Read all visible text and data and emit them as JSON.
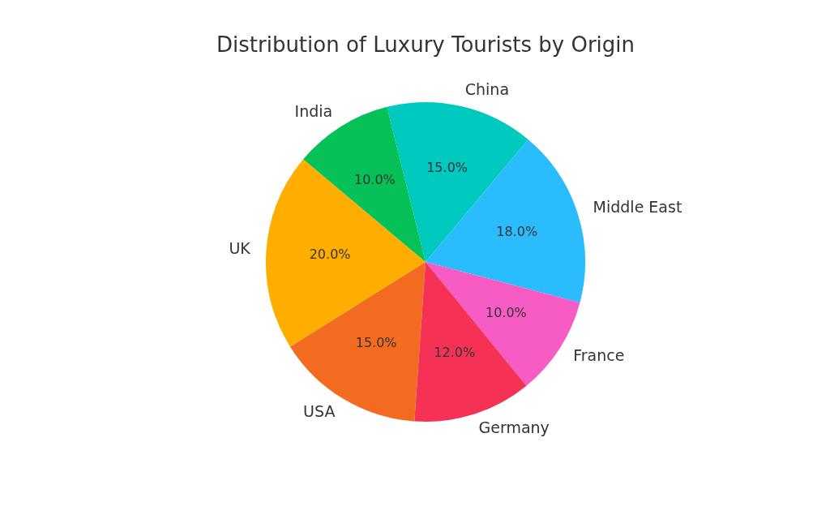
{
  "chart_data": {
    "type": "pie",
    "title": "Distribution of Luxury Tourists by Origin",
    "categories": [
      "China",
      "Middle East",
      "France",
      "Germany",
      "USA",
      "UK",
      "India"
    ],
    "values": [
      15,
      18,
      10,
      12,
      15,
      20,
      10
    ],
    "colors": [
      "#00c9c0",
      "#2bbcfd",
      "#f75bc4",
      "#f53256",
      "#f26b21",
      "#ffae00",
      "#05c157"
    ],
    "value_labels": [
      "15.0%",
      "18.0%",
      "10.0%",
      "12.0%",
      "15.0%",
      "20.0%",
      "10.0%"
    ],
    "legend": false
  }
}
